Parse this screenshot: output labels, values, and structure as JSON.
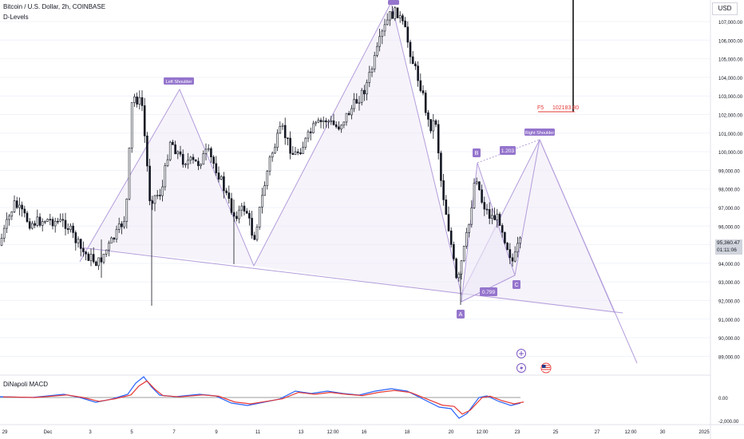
{
  "header": {
    "symbol": "Bitcoin / U.S. Dollar, 2h, COINBASE",
    "indicator": "D-Levels",
    "currency": "USD"
  },
  "price_axis": {
    "labels": [
      "107,000.00",
      "106,000.00",
      "105,000.00",
      "104,000.00",
      "103,000.00",
      "102,000.00",
      "101,000.00",
      "100,000.00",
      "99,000.00",
      "98,000.00",
      "97,000.00",
      "96,000.00",
      "95,000.00",
      "94,000.00",
      "93,000.00",
      "92,000.00",
      "91,000.00",
      "90,000.00",
      "89,000.00"
    ],
    "current_price": "95,360.47",
    "countdown": "01:11:06"
  },
  "macd_axis": {
    "labels": [
      "0.00",
      "-2,000.00"
    ]
  },
  "time_axis": {
    "labels": [
      "29",
      "Dec",
      "3",
      "5",
      "7",
      "9",
      "11",
      "13",
      "12:00",
      "16",
      "18",
      "20",
      "12:00",
      "23",
      "25",
      "27",
      "12:00",
      "30",
      "2025"
    ]
  },
  "pattern": {
    "left_shoulder": "Left Shoulder",
    "right_shoulder": "Right Shoulder",
    "point_a": "A",
    "point_b": "B",
    "point_c": "C",
    "ratio_1": "1.203",
    "ratio_2": "0.799"
  },
  "level": {
    "tag": "F5",
    "value": "102183.80",
    "color": "#e53935"
  },
  "macd": {
    "title": "DiNapoli MACD",
    "fast_color": "#2962ff",
    "slow_color": "#e53935"
  },
  "colors": {
    "pattern": "#b39ddb",
    "label_bg": "#9575cd",
    "candle": "#131722"
  },
  "icons": [
    "plus-icon",
    "lightning-icon",
    "us-flag-icon"
  ]
}
